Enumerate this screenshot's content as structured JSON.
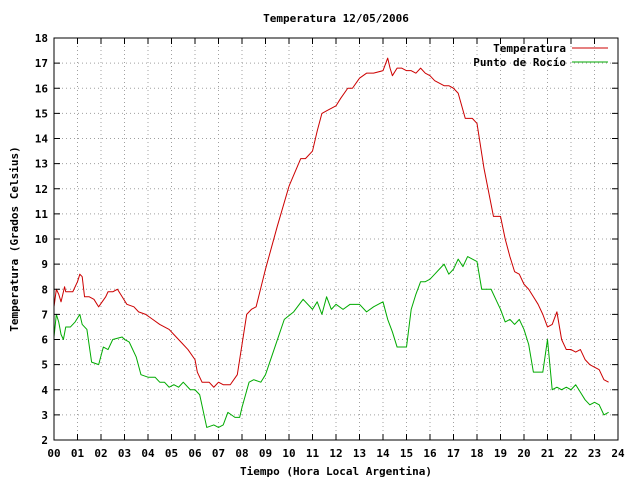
{
  "chart_data": {
    "type": "line",
    "title": "Temperatura 12/05/2006",
    "xlabel": "Tiempo (Hora Local Argentina)",
    "ylabel": "Temperatura (Grados Celsius)",
    "xlim": [
      0,
      24
    ],
    "ylim": [
      2,
      18
    ],
    "grid": true,
    "legend_position": "top-right",
    "x_tick_labels": [
      "00",
      "01",
      "02",
      "03",
      "04",
      "05",
      "06",
      "07",
      "08",
      "09",
      "10",
      "11",
      "12",
      "13",
      "14",
      "15",
      "16",
      "17",
      "18",
      "19",
      "20",
      "21",
      "22",
      "23",
      "24"
    ],
    "y_tick_labels": [
      "2",
      "3",
      "4",
      "5",
      "6",
      "7",
      "8",
      "9",
      "10",
      "11",
      "12",
      "13",
      "14",
      "15",
      "16",
      "17",
      "18"
    ],
    "series": [
      {
        "name": "Temperatura",
        "color": "#cc0000",
        "x": [
          0.0,
          0.1,
          0.2,
          0.3,
          0.45,
          0.5,
          0.6,
          0.8,
          1.0,
          1.1,
          1.2,
          1.3,
          1.5,
          1.7,
          1.9,
          2.2,
          2.3,
          2.5,
          2.7,
          2.9,
          3.1,
          3.4,
          3.6,
          3.9,
          4.2,
          4.5,
          4.7,
          4.9,
          5.1,
          5.3,
          5.5,
          5.7,
          6.0,
          6.1,
          6.3,
          6.6,
          6.8,
          7.0,
          7.2,
          7.5,
          7.8,
          8.0,
          8.2,
          8.4,
          8.6,
          9.0,
          9.5,
          10.0,
          10.5,
          10.7,
          11.0,
          11.2,
          11.4,
          11.6,
          11.8,
          12.0,
          12.2,
          12.5,
          12.7,
          13.0,
          13.3,
          13.6,
          14.0,
          14.2,
          14.3,
          14.4,
          14.6,
          14.8,
          15.0,
          15.2,
          15.4,
          15.6,
          15.8,
          16.0,
          16.2,
          16.4,
          16.6,
          16.8,
          17.0,
          17.2,
          17.5,
          17.8,
          18.0,
          18.3,
          18.7,
          19.0,
          19.2,
          19.4,
          19.6,
          19.8,
          20.0,
          20.2,
          20.4,
          20.6,
          20.8,
          21.0,
          21.2,
          21.4,
          21.6,
          21.8,
          22.0,
          22.2,
          22.4,
          22.6,
          22.8,
          23.0,
          23.2,
          23.4,
          23.6
        ],
        "values": [
          7.3,
          8.0,
          7.8,
          7.5,
          8.1,
          7.9,
          7.9,
          7.9,
          8.3,
          8.6,
          8.5,
          7.7,
          7.7,
          7.6,
          7.3,
          7.7,
          7.9,
          7.9,
          8.0,
          7.7,
          7.4,
          7.3,
          7.1,
          7.0,
          6.8,
          6.6,
          6.5,
          6.4,
          6.2,
          6.0,
          5.8,
          5.6,
          5.2,
          4.7,
          4.3,
          4.3,
          4.1,
          4.3,
          4.2,
          4.2,
          4.6,
          5.8,
          7.0,
          7.2,
          7.3,
          8.8,
          10.5,
          12.1,
          13.2,
          13.2,
          13.5,
          14.3,
          15.0,
          15.1,
          15.2,
          15.3,
          15.6,
          16.0,
          16.0,
          16.4,
          16.6,
          16.6,
          16.7,
          17.2,
          16.8,
          16.5,
          16.8,
          16.8,
          16.7,
          16.7,
          16.6,
          16.8,
          16.6,
          16.5,
          16.3,
          16.2,
          16.1,
          16.1,
          16.0,
          15.8,
          14.8,
          14.8,
          14.6,
          12.8,
          10.9,
          10.9,
          10.0,
          9.3,
          8.7,
          8.6,
          8.2,
          8.0,
          7.7,
          7.4,
          7.0,
          6.5,
          6.6,
          7.1,
          6.0,
          5.6,
          5.6,
          5.5,
          5.6,
          5.2,
          5.0,
          4.9,
          4.8,
          4.4,
          4.3
        ]
      },
      {
        "name": "Punto de Rocío",
        "color": "#00aa00",
        "x": [
          0.0,
          0.1,
          0.2,
          0.3,
          0.4,
          0.5,
          0.7,
          0.9,
          1.1,
          1.2,
          1.4,
          1.6,
          1.9,
          2.1,
          2.3,
          2.5,
          2.9,
          3.0,
          3.2,
          3.5,
          3.7,
          4.0,
          4.3,
          4.5,
          4.7,
          4.9,
          5.1,
          5.3,
          5.5,
          5.8,
          6.0,
          6.2,
          6.5,
          6.8,
          7.0,
          7.2,
          7.4,
          7.7,
          7.9,
          8.0,
          8.3,
          8.5,
          8.8,
          9.0,
          9.4,
          9.8,
          10.2,
          10.6,
          11.0,
          11.2,
          11.4,
          11.6,
          11.8,
          12.0,
          12.3,
          12.6,
          13.0,
          13.3,
          13.6,
          14.0,
          14.2,
          14.4,
          14.6,
          14.8,
          15.0,
          15.2,
          15.4,
          15.6,
          15.8,
          16.0,
          16.2,
          16.4,
          16.6,
          16.8,
          17.0,
          17.2,
          17.4,
          17.6,
          17.8,
          18.0,
          18.2,
          18.4,
          18.6,
          18.8,
          19.0,
          19.2,
          19.4,
          19.6,
          19.8,
          20.0,
          20.2,
          20.4,
          20.6,
          20.8,
          21.0,
          21.2,
          21.4,
          21.6,
          21.8,
          22.0,
          22.2,
          22.4,
          22.6,
          22.8,
          23.0,
          23.2,
          23.4,
          23.6
        ],
        "values": [
          6.1,
          7.0,
          6.7,
          6.2,
          6.0,
          6.5,
          6.5,
          6.7,
          7.0,
          6.6,
          6.4,
          5.1,
          5.0,
          5.7,
          5.6,
          6.0,
          6.1,
          6.0,
          5.9,
          5.3,
          4.6,
          4.5,
          4.5,
          4.3,
          4.3,
          4.1,
          4.2,
          4.1,
          4.3,
          4.0,
          4.0,
          3.8,
          2.5,
          2.6,
          2.5,
          2.6,
          3.1,
          2.9,
          2.9,
          3.3,
          4.3,
          4.4,
          4.3,
          4.6,
          5.7,
          6.8,
          7.1,
          7.6,
          7.2,
          7.5,
          7.0,
          7.7,
          7.2,
          7.4,
          7.2,
          7.4,
          7.4,
          7.1,
          7.3,
          7.5,
          6.8,
          6.3,
          5.7,
          5.7,
          5.7,
          7.2,
          7.8,
          8.3,
          8.3,
          8.4,
          8.6,
          8.8,
          9.0,
          8.6,
          8.8,
          9.2,
          8.9,
          9.3,
          9.2,
          9.1,
          8.0,
          8.0,
          8.0,
          7.6,
          7.2,
          6.7,
          6.8,
          6.6,
          6.8,
          6.4,
          5.8,
          4.7,
          4.7,
          4.7,
          6.0,
          4.0,
          4.1,
          4.0,
          4.1,
          4.0,
          4.2,
          3.9,
          3.6,
          3.4,
          3.5,
          3.4,
          3.0,
          3.1
        ]
      }
    ]
  }
}
